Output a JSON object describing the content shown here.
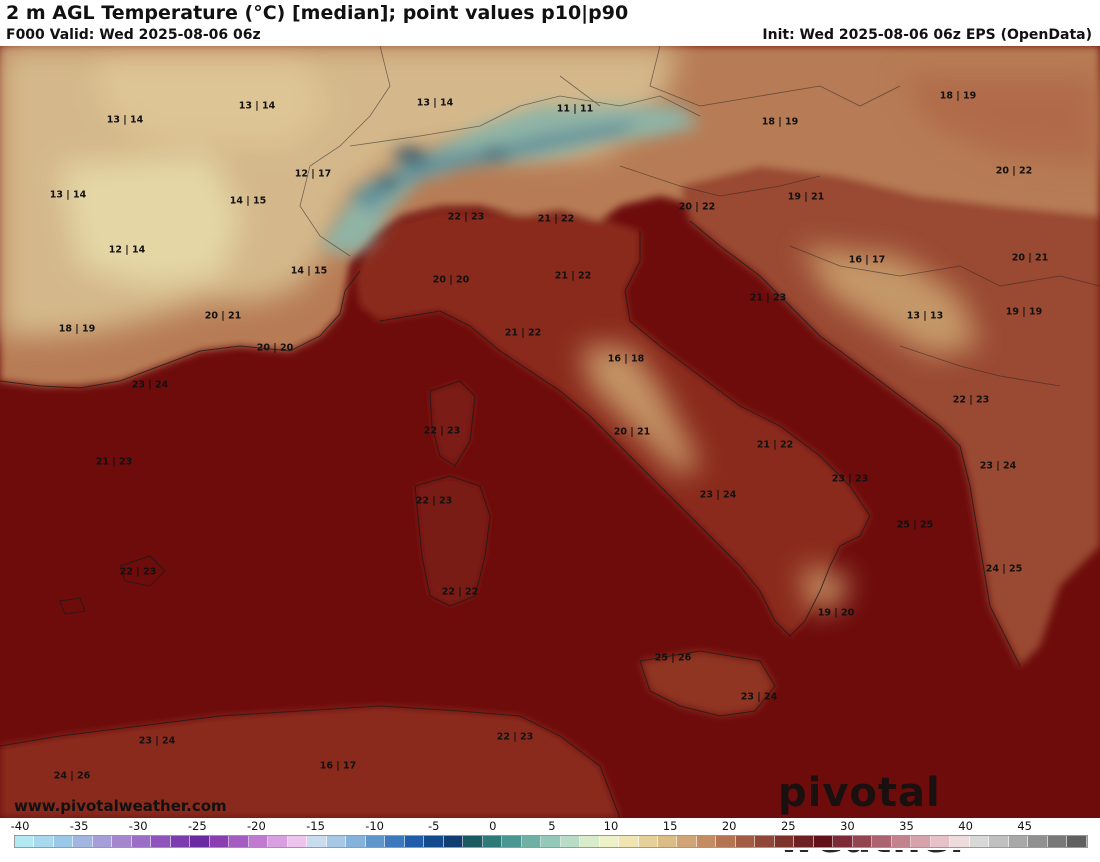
{
  "header": {
    "title": "2 m AGL Temperature (°C) [median]; point values p10|p90",
    "valid": "F000 Valid: Wed 2025-08-06 06z",
    "init": "Init: Wed 2025-08-06 06z EPS (OpenData)"
  },
  "watermark": {
    "url": "www.pivotalweather.com",
    "brand": "pivotal weather"
  },
  "colors": {
    "sea_hot": "#6e0c0c",
    "land_hot": "#8a2a1c",
    "land_warm": "#a5573a",
    "land_mild": "#c79a6a",
    "land_cool": "#dcc49a",
    "alps_cold": "#5e8e9a",
    "alps_deep": "#1f4f6a"
  },
  "colorbar": {
    "ticks": [
      "-40",
      "-35",
      "-30",
      "-25",
      "-20",
      "-15",
      "-10",
      "-5",
      "0",
      "5",
      "10",
      "15",
      "20",
      "25",
      "30",
      "35",
      "40",
      "45"
    ],
    "swatches": [
      "#b4e8f2",
      "#a8d8ee",
      "#9cc8e8",
      "#a2b4e0",
      "#a69ed8",
      "#a486ce",
      "#9c6ec6",
      "#8e54bc",
      "#7c3cae",
      "#6a2aa0",
      "#8a3eb0",
      "#a45cc0",
      "#c07ad0",
      "#d8a0e0",
      "#ecc4ee",
      "#c8dcee",
      "#a6c8e4",
      "#84b2da",
      "#5e96cc",
      "#3c78bc",
      "#205ca8",
      "#134a8c",
      "#103e70",
      "#1c5a62",
      "#2e7a78",
      "#4a9690",
      "#6eb0a4",
      "#94c8b8",
      "#b8dcc8",
      "#d8eccc",
      "#eef0c8",
      "#f0e4b0",
      "#e6d09a",
      "#dcbc86",
      "#d0a474",
      "#c48c62",
      "#b47452",
      "#a25c44",
      "#904638",
      "#7e322c",
      "#6c2022",
      "#62101a",
      "#7c2a38",
      "#944650",
      "#ac6470",
      "#c2828e",
      "#d6a2ac",
      "#e6c2c8",
      "#eedcdc",
      "#d8d8d8",
      "#c0c0c0",
      "#a8a8a8",
      "#909090",
      "#787878",
      "#606060"
    ]
  },
  "point_values": [
    {
      "text": "13 | 14"
    },
    {
      "text": "13 | 14"
    },
    {
      "text": "13 | 14"
    },
    {
      "text": "11 | 11"
    },
    {
      "text": "18 | 19"
    },
    {
      "text": "18 | 19"
    },
    {
      "text": "13 | 14"
    },
    {
      "text": "12 | 17"
    },
    {
      "text": "14 | 15"
    },
    {
      "text": "20 | 22"
    },
    {
      "text": "12 | 14"
    },
    {
      "text": "22 | 23"
    },
    {
      "text": "21 | 22"
    },
    {
      "text": "20 | 22"
    },
    {
      "text": "19 | 21"
    },
    {
      "text": "14 | 15"
    },
    {
      "text": "16 | 17"
    },
    {
      "text": "20 | 21"
    },
    {
      "text": "20 | 20"
    },
    {
      "text": "21 | 22"
    },
    {
      "text": "21 | 23"
    },
    {
      "text": "18 | 19"
    },
    {
      "text": "20 | 21"
    },
    {
      "text": "21 | 22"
    },
    {
      "text": "13 | 13"
    },
    {
      "text": "19 | 19"
    },
    {
      "text": "20 | 20"
    },
    {
      "text": "16 | 18"
    },
    {
      "text": "23 | 24"
    },
    {
      "text": "22 | 23"
    },
    {
      "text": "22 | 23"
    },
    {
      "text": "20 | 21"
    },
    {
      "text": "21 | 22"
    },
    {
      "text": "21 | 23"
    },
    {
      "text": "23 | 24"
    },
    {
      "text": "23 | 23"
    },
    {
      "text": "23 | 24"
    },
    {
      "text": "22 | 23"
    },
    {
      "text": "25 | 25"
    },
    {
      "text": "22 | 23"
    },
    {
      "text": "24 | 25"
    },
    {
      "text": "22 | 22"
    },
    {
      "text": "19 | 20"
    },
    {
      "text": "25 | 26"
    },
    {
      "text": "23 | 24"
    },
    {
      "text": "23 | 24"
    },
    {
      "text": "22 | 23"
    },
    {
      "text": "16 | 17"
    },
    {
      "text": "24 | 26"
    }
  ]
}
